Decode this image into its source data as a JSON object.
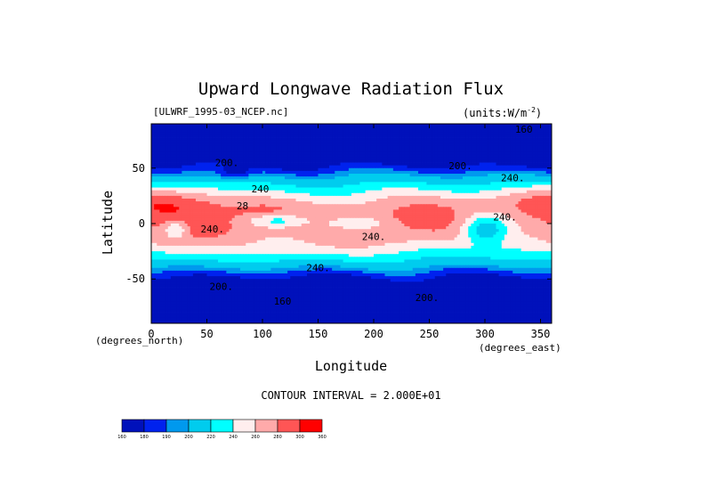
{
  "chart_data": {
    "type": "heatmap",
    "title": "Upward Longwave Radiation Flux",
    "file_label": "[ULWRF_1995-03_NCEP.nc]",
    "units_prefix": "(units:W/m",
    "units_exponent": "-2",
    "units_suffix": ")",
    "xlabel": "Longitude",
    "ylabel": "Latitude",
    "x_unit_label": "(degrees_east)",
    "y_unit_label": "(degrees_north)",
    "xlim": [
      0,
      360
    ],
    "ylim": [
      -90,
      90
    ],
    "x_ticks": [
      0,
      50,
      100,
      150,
      200,
      250,
      300,
      350
    ],
    "y_ticks": [
      -50,
      0,
      50
    ],
    "contour_interval_text": "CONTOUR INTERVAL = 2.000E+01",
    "color_levels": [
      160,
      180,
      190,
      200,
      220,
      240,
      260,
      280,
      300,
      360
    ],
    "color_bins": [
      "#0011bb",
      "#0022ee",
      "#0099ee",
      "#00ccee",
      "#00ffff",
      "#ffeeee",
      "#ffaaaa",
      "#ff5555",
      "#ff0000"
    ],
    "contour_labels": [
      {
        "text": "160",
        "lon": 335,
        "lat": 82
      },
      {
        "text": "200.",
        "lon": 68,
        "lat": 52
      },
      {
        "text": "200.",
        "lon": 278,
        "lat": 49
      },
      {
        "text": "240.",
        "lon": 325,
        "lat": 38
      },
      {
        "text": "240",
        "lon": 98,
        "lat": 28
      },
      {
        "text": "28",
        "lon": 82,
        "lat": 13
      },
      {
        "text": "240.",
        "lon": 55,
        "lat": -8
      },
      {
        "text": "240.",
        "lon": 200,
        "lat": -15
      },
      {
        "text": "240.",
        "lon": 318,
        "lat": 3
      },
      {
        "text": "240.",
        "lon": 150,
        "lat": -43
      },
      {
        "text": "200.",
        "lon": 63,
        "lat": -60
      },
      {
        "text": "200.",
        "lon": 248,
        "lat": -70
      },
      {
        "text": "160",
        "lon": 118,
        "lat": -73
      }
    ]
  }
}
